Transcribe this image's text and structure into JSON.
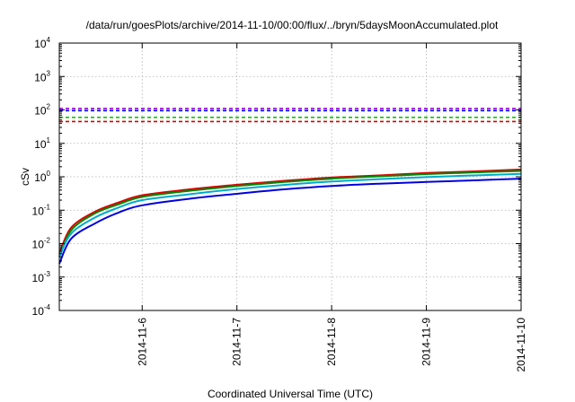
{
  "chart_data": {
    "type": "line",
    "title": "/data/run/goesPlots/archive/2014-11-10/00:00/flux/../bryn/5daysMoonAccumulated.plot",
    "xlabel": "Coordinated Universal Time (UTC)",
    "ylabel": "cSv",
    "y_scale": "log",
    "ylim": [
      0.0001,
      10000
    ],
    "xlim": [
      "2014-11-05T03:00",
      "2014-11-10T00:00"
    ],
    "grid": true,
    "x_ticks": [
      "2014-11-6",
      "2014-11-7",
      "2014-11-8",
      "2014-11-9",
      "2014-11-10"
    ],
    "y_ticks": [
      {
        "value": 0.0001,
        "base": "10",
        "exp": "-4"
      },
      {
        "value": 0.001,
        "base": "10",
        "exp": "-3"
      },
      {
        "value": 0.01,
        "base": "10",
        "exp": "-2"
      },
      {
        "value": 0.1,
        "base": "10",
        "exp": "-1"
      },
      {
        "value": 1,
        "base": "10",
        "exp": "0"
      },
      {
        "value": 10,
        "base": "10",
        "exp": "1"
      },
      {
        "value": 100,
        "base": "10",
        "exp": "2"
      },
      {
        "value": 1000,
        "base": "10",
        "exp": "3"
      },
      {
        "value": 10000,
        "base": "10",
        "exp": "4"
      }
    ],
    "x": [
      "2014-11-05T03:00",
      "2014-11-05T06:00",
      "2014-11-05T12:00",
      "2014-11-05T18:00",
      "2014-11-06T00:00",
      "2014-11-06T12:00",
      "2014-11-07T00:00",
      "2014-11-07T12:00",
      "2014-11-08T00:00",
      "2014-11-08T12:00",
      "2014-11-09T00:00",
      "2014-11-09T12:00",
      "2014-11-10T00:00"
    ],
    "series": [
      {
        "color": "#dd0000",
        "style": "solid",
        "values": [
          0.005,
          0.03,
          0.09,
          0.17,
          0.28,
          0.42,
          0.58,
          0.76,
          0.95,
          1.1,
          1.3,
          1.45,
          1.65
        ]
      },
      {
        "color": "#008800",
        "style": "solid",
        "values": [
          0.004,
          0.025,
          0.08,
          0.15,
          0.25,
          0.38,
          0.53,
          0.7,
          0.88,
          1.03,
          1.2,
          1.35,
          1.5
        ]
      },
      {
        "color": "#00aacc",
        "style": "solid",
        "values": [
          0.004,
          0.02,
          0.06,
          0.12,
          0.2,
          0.3,
          0.43,
          0.57,
          0.72,
          0.85,
          0.98,
          1.1,
          1.22
        ]
      },
      {
        "color": "#0000dd",
        "style": "solid",
        "values": [
          0.0025,
          0.014,
          0.04,
          0.085,
          0.14,
          0.22,
          0.31,
          0.42,
          0.53,
          0.62,
          0.7,
          0.78,
          0.88
        ]
      }
    ],
    "thresholds": [
      {
        "color": "#9400d3",
        "style": "dashed",
        "value": 110
      },
      {
        "color": "#0000ff",
        "style": "dashed",
        "value": 95
      },
      {
        "color": "#00cc00",
        "style": "dashed",
        "value": 60
      },
      {
        "color": "#dd0000",
        "style": "dashed",
        "value": 45
      }
    ]
  }
}
